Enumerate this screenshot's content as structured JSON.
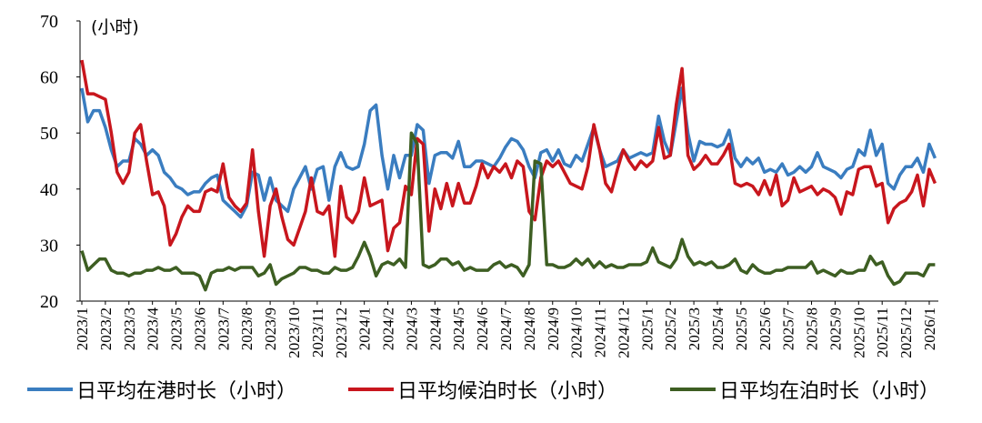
{
  "chart_data": {
    "type": "line",
    "y_unit_label": "(小时)",
    "ylim": [
      20,
      70
    ],
    "yticks": [
      20,
      30,
      40,
      50,
      60,
      70
    ],
    "legend_position": "bottom",
    "categories": [
      "2023/1",
      null,
      null,
      null,
      "2023/2",
      null,
      null,
      null,
      "2023/3",
      null,
      null,
      null,
      "2023/4",
      null,
      null,
      null,
      "2023/5",
      null,
      null,
      null,
      "2023/6",
      null,
      null,
      null,
      "2023/7",
      null,
      null,
      null,
      "2023/8",
      null,
      null,
      null,
      "2023/9",
      null,
      null,
      null,
      "2023/10",
      null,
      null,
      null,
      "2023/11",
      null,
      null,
      null,
      "2023/12",
      null,
      null,
      null,
      "2024/1",
      null,
      null,
      null,
      "2024/2",
      null,
      null,
      null,
      "2024/3",
      null,
      null,
      null,
      "2024/4",
      null,
      null,
      null,
      "2024/5",
      null,
      null,
      null,
      "2024/6",
      null,
      null,
      null,
      "2024/7",
      null,
      null,
      null,
      "2024/8",
      null,
      null,
      null,
      "2024/9",
      null,
      null,
      null,
      "2024/10",
      null,
      null,
      null,
      "2024/11",
      null,
      null,
      null,
      "2024/12",
      null,
      null,
      null,
      "2025/1",
      null,
      null,
      null,
      "2025/2",
      null,
      null,
      null,
      "2025/3",
      null,
      null,
      null,
      "2025/4",
      null,
      null,
      null,
      "2025/5",
      null,
      null,
      null,
      "2025/6",
      null,
      null,
      null,
      "2025/7",
      null,
      null,
      null,
      "2025/8",
      null,
      null,
      null,
      "2025/9",
      null,
      null,
      null,
      "2025/10",
      null,
      null,
      null,
      "2025/11",
      null,
      null,
      null,
      "2025/12",
      null,
      null,
      null,
      "2026/1",
      null
    ],
    "series": [
      {
        "name": "日平均在港时长（小时）",
        "color": "#3a7dc0",
        "values": [
          58,
          52,
          54,
          54,
          51,
          47,
          44,
          45,
          45,
          49,
          48,
          46,
          47,
          46,
          43,
          42,
          40.5,
          40,
          39,
          39.5,
          39.5,
          41,
          42,
          42.5,
          38,
          37,
          36,
          35,
          37,
          43,
          42.5,
          38,
          42,
          38,
          37,
          36,
          40,
          42,
          44,
          40,
          43.5,
          44,
          38,
          44,
          46.5,
          44,
          43.5,
          44,
          48,
          54,
          55,
          46,
          40,
          46,
          42,
          46,
          46,
          51.5,
          50.5,
          41,
          46,
          46.5,
          46.5,
          45.5,
          48.5,
          44,
          44,
          45,
          45,
          44.5,
          44,
          45.5,
          47.5,
          49,
          48.5,
          47,
          44,
          42,
          46.5,
          47,
          45,
          47,
          44.5,
          44,
          46,
          45,
          48,
          51,
          47,
          44,
          44.5,
          45,
          47,
          45.5,
          46,
          46.5,
          46,
          46.5,
          53,
          48.5,
          46,
          52,
          58,
          50,
          45,
          48.5,
          48,
          48,
          47.5,
          48,
          50.5,
          45.5,
          44,
          45.5,
          44.5,
          45.5,
          43,
          43.5,
          43,
          44.5,
          42.5,
          43,
          44,
          43,
          44,
          46.5,
          44,
          43.5,
          43,
          42,
          43.5,
          44,
          47,
          46,
          50.5,
          46,
          48,
          41,
          40,
          42.5,
          44,
          44,
          45.5,
          43,
          48,
          45.5
        ]
      },
      {
        "name": "日平均候泊时长（小时）",
        "color": "#c8161d",
        "values": [
          63,
          57,
          57,
          56.5,
          56,
          50,
          43,
          41,
          43,
          50,
          51.5,
          45,
          39,
          39.5,
          37,
          30,
          32,
          35,
          37,
          36,
          36,
          39.5,
          40,
          39.5,
          44.5,
          38.5,
          37,
          36,
          37.5,
          47,
          36,
          28,
          37,
          40,
          35,
          31,
          30,
          33,
          36,
          42,
          36,
          35.5,
          37,
          28,
          40.5,
          35,
          34,
          36,
          42,
          37,
          37.5,
          38,
          29,
          33,
          34,
          40.5,
          39,
          49,
          48,
          32.5,
          40,
          36.5,
          41,
          37,
          41,
          37.5,
          37.5,
          40.5,
          44.5,
          42,
          44,
          43,
          44.5,
          42,
          45,
          44,
          36,
          34.5,
          42,
          45,
          44,
          45,
          43,
          41,
          40.5,
          40,
          44,
          51.5,
          47,
          41,
          39.5,
          43.5,
          47,
          45,
          43.5,
          45,
          44,
          45,
          51,
          45.5,
          46,
          55,
          61.5,
          46,
          43.5,
          44.5,
          46,
          44.5,
          44.5,
          46,
          48,
          41,
          40.5,
          41,
          40.5,
          39,
          41.5,
          39,
          42.5,
          37,
          38,
          42,
          39.5,
          40,
          40.5,
          39,
          40,
          39.5,
          38.5,
          35.5,
          39.5,
          39,
          43.5,
          44,
          44,
          40.5,
          41,
          34,
          36.5,
          37.5,
          38,
          39.5,
          42.5,
          37,
          43.5,
          41
        ]
      },
      {
        "name": "日平均在泊时长（小时）",
        "color": "#3d5e22",
        "values": [
          29,
          25.5,
          26.5,
          27.5,
          27.5,
          25.5,
          25,
          25,
          24.5,
          25,
          25,
          25.5,
          25.5,
          26,
          25.5,
          25.5,
          26,
          25,
          25,
          25,
          24.5,
          22,
          25,
          25.5,
          25.5,
          26,
          25.5,
          26,
          26,
          26,
          24.5,
          25,
          26.5,
          23,
          24,
          24.5,
          25,
          26,
          26,
          25.5,
          25.5,
          25,
          25,
          26,
          25.5,
          25.5,
          26,
          28,
          30.5,
          28,
          24.5,
          26.5,
          27,
          26.5,
          27.5,
          26,
          50,
          48,
          26.5,
          26,
          26.5,
          27.5,
          27.5,
          26.5,
          27,
          25.5,
          26,
          25.5,
          25.5,
          25.5,
          26.5,
          27,
          26,
          26.5,
          26,
          24.5,
          26.5,
          45,
          44.5,
          26.5,
          26.5,
          26,
          26,
          26.5,
          27.5,
          26.5,
          27.5,
          26,
          27,
          26,
          26.5,
          26,
          26,
          26.5,
          26.5,
          26.5,
          27,
          29.5,
          27,
          26.5,
          26,
          27.5,
          31,
          28,
          26.5,
          27,
          26.5,
          27,
          26,
          26,
          26.5,
          27.5,
          25.5,
          25,
          26.5,
          25.5,
          25,
          25,
          25.5,
          25.5,
          26,
          26,
          26,
          26,
          27,
          25,
          25.5,
          25,
          24.5,
          25.5,
          25,
          25,
          25.5,
          25.5,
          28,
          26.5,
          27,
          24.5,
          23,
          23.5,
          25,
          25,
          25,
          24.5,
          26.5,
          26.5
        ]
      }
    ]
  }
}
